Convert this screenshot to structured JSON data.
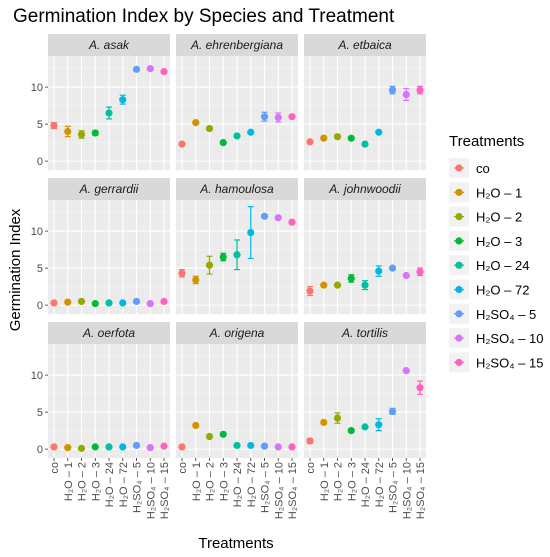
{
  "chart_data": {
    "type": "scatter",
    "title": "Germination Index by Species and Treatment",
    "xlabel": "Treatments",
    "ylabel": "Germination Index",
    "ylim": [
      -1.2,
      14.2
    ],
    "yticks": [
      0,
      5,
      10
    ],
    "grid": true,
    "legend": {
      "title": "Treatments",
      "position": "right",
      "entries": [
        {
          "label": "co",
          "color": "#F8766D"
        },
        {
          "label": "H₂O – 1",
          "color": "#D39200"
        },
        {
          "label": "H₂O – 2",
          "color": "#93AA00"
        },
        {
          "label": "H₂O – 3",
          "color": "#00BA38"
        },
        {
          "label": "H₂O – 24",
          "color": "#00C19F"
        },
        {
          "label": "H₂O – 72",
          "color": "#00B9E3"
        },
        {
          "label": "H₂SO₄ – 5",
          "color": "#619CFF"
        },
        {
          "label": "H₂SO₄ – 10",
          "color": "#DB72FB"
        },
        {
          "label": "H₂SO₄ – 15",
          "color": "#FF61C3"
        }
      ]
    },
    "categories": [
      "co",
      "H₂O – 1",
      "H₂O – 2",
      "H₂O – 3",
      "H₂O – 24",
      "H₂O – 72",
      "H₂SO₄ – 5",
      "H₂SO₄ – 10",
      "H₂SO₄ – 15"
    ],
    "panels": [
      {
        "name": "A. asak",
        "values": [
          4.8,
          4.0,
          3.6,
          3.8,
          6.5,
          8.3,
          12.4,
          12.5,
          12.1
        ],
        "errors": [
          0.4,
          0.7,
          0.5,
          0.3,
          0.8,
          0.6,
          0.1,
          0.1,
          0.2
        ]
      },
      {
        "name": "A. ehrenbergiana",
        "values": [
          2.3,
          5.2,
          4.4,
          2.5,
          3.4,
          3.9,
          6.0,
          5.9,
          6.0
        ],
        "errors": [
          0.1,
          0.1,
          0.2,
          0.1,
          0.1,
          0.1,
          0.6,
          0.6,
          0.2
        ]
      },
      {
        "name": "A. etbaica",
        "values": [
          2.6,
          3.1,
          3.3,
          3.1,
          2.3,
          3.9,
          9.6,
          9.0,
          9.6
        ],
        "errors": [
          0.1,
          0.1,
          0.1,
          0.1,
          0.1,
          0.1,
          0.5,
          0.8,
          0.5
        ]
      },
      {
        "name": "A. gerrardii",
        "values": [
          0.3,
          0.4,
          0.5,
          0.2,
          0.3,
          0.3,
          0.5,
          0.2,
          0.5
        ],
        "errors": [
          0.1,
          0.1,
          0.1,
          0.1,
          0.1,
          0.1,
          0.1,
          0.1,
          0.1
        ]
      },
      {
        "name": "A. hamoulosa",
        "values": [
          4.3,
          3.4,
          5.4,
          6.5,
          6.8,
          9.8,
          12.0,
          11.8,
          11.2
        ],
        "errors": [
          0.5,
          0.5,
          1.2,
          0.5,
          2.0,
          3.5,
          0.2,
          0.2,
          0.2
        ]
      },
      {
        "name": "A. johnwoodii",
        "values": [
          1.9,
          2.7,
          2.7,
          3.6,
          2.7,
          4.6,
          5.0,
          4.0,
          4.5
        ],
        "errors": [
          0.6,
          0.2,
          0.2,
          0.5,
          0.6,
          0.7,
          0.1,
          0.2,
          0.5
        ]
      },
      {
        "name": "A. oerfota",
        "values": [
          0.3,
          0.2,
          0.1,
          0.3,
          0.3,
          0.3,
          0.5,
          0.2,
          0.4
        ],
        "errors": [
          0.1,
          0.1,
          0.1,
          0.1,
          0.1,
          0.1,
          0.1,
          0.1,
          0.1
        ]
      },
      {
        "name": "A. origena",
        "values": [
          0.3,
          3.2,
          1.7,
          2.0,
          0.5,
          0.5,
          0.4,
          0.3,
          0.3
        ],
        "errors": [
          0.1,
          0.1,
          0.1,
          0.1,
          0.1,
          0.1,
          0.1,
          0.1,
          0.1
        ]
      },
      {
        "name": "A. tortilis",
        "values": [
          1.1,
          3.6,
          4.2,
          2.5,
          3.0,
          3.3,
          5.1,
          10.6,
          8.3
        ],
        "errors": [
          0.3,
          0.2,
          0.7,
          0.2,
          0.1,
          0.8,
          0.4,
          0.1,
          0.9
        ]
      }
    ]
  }
}
